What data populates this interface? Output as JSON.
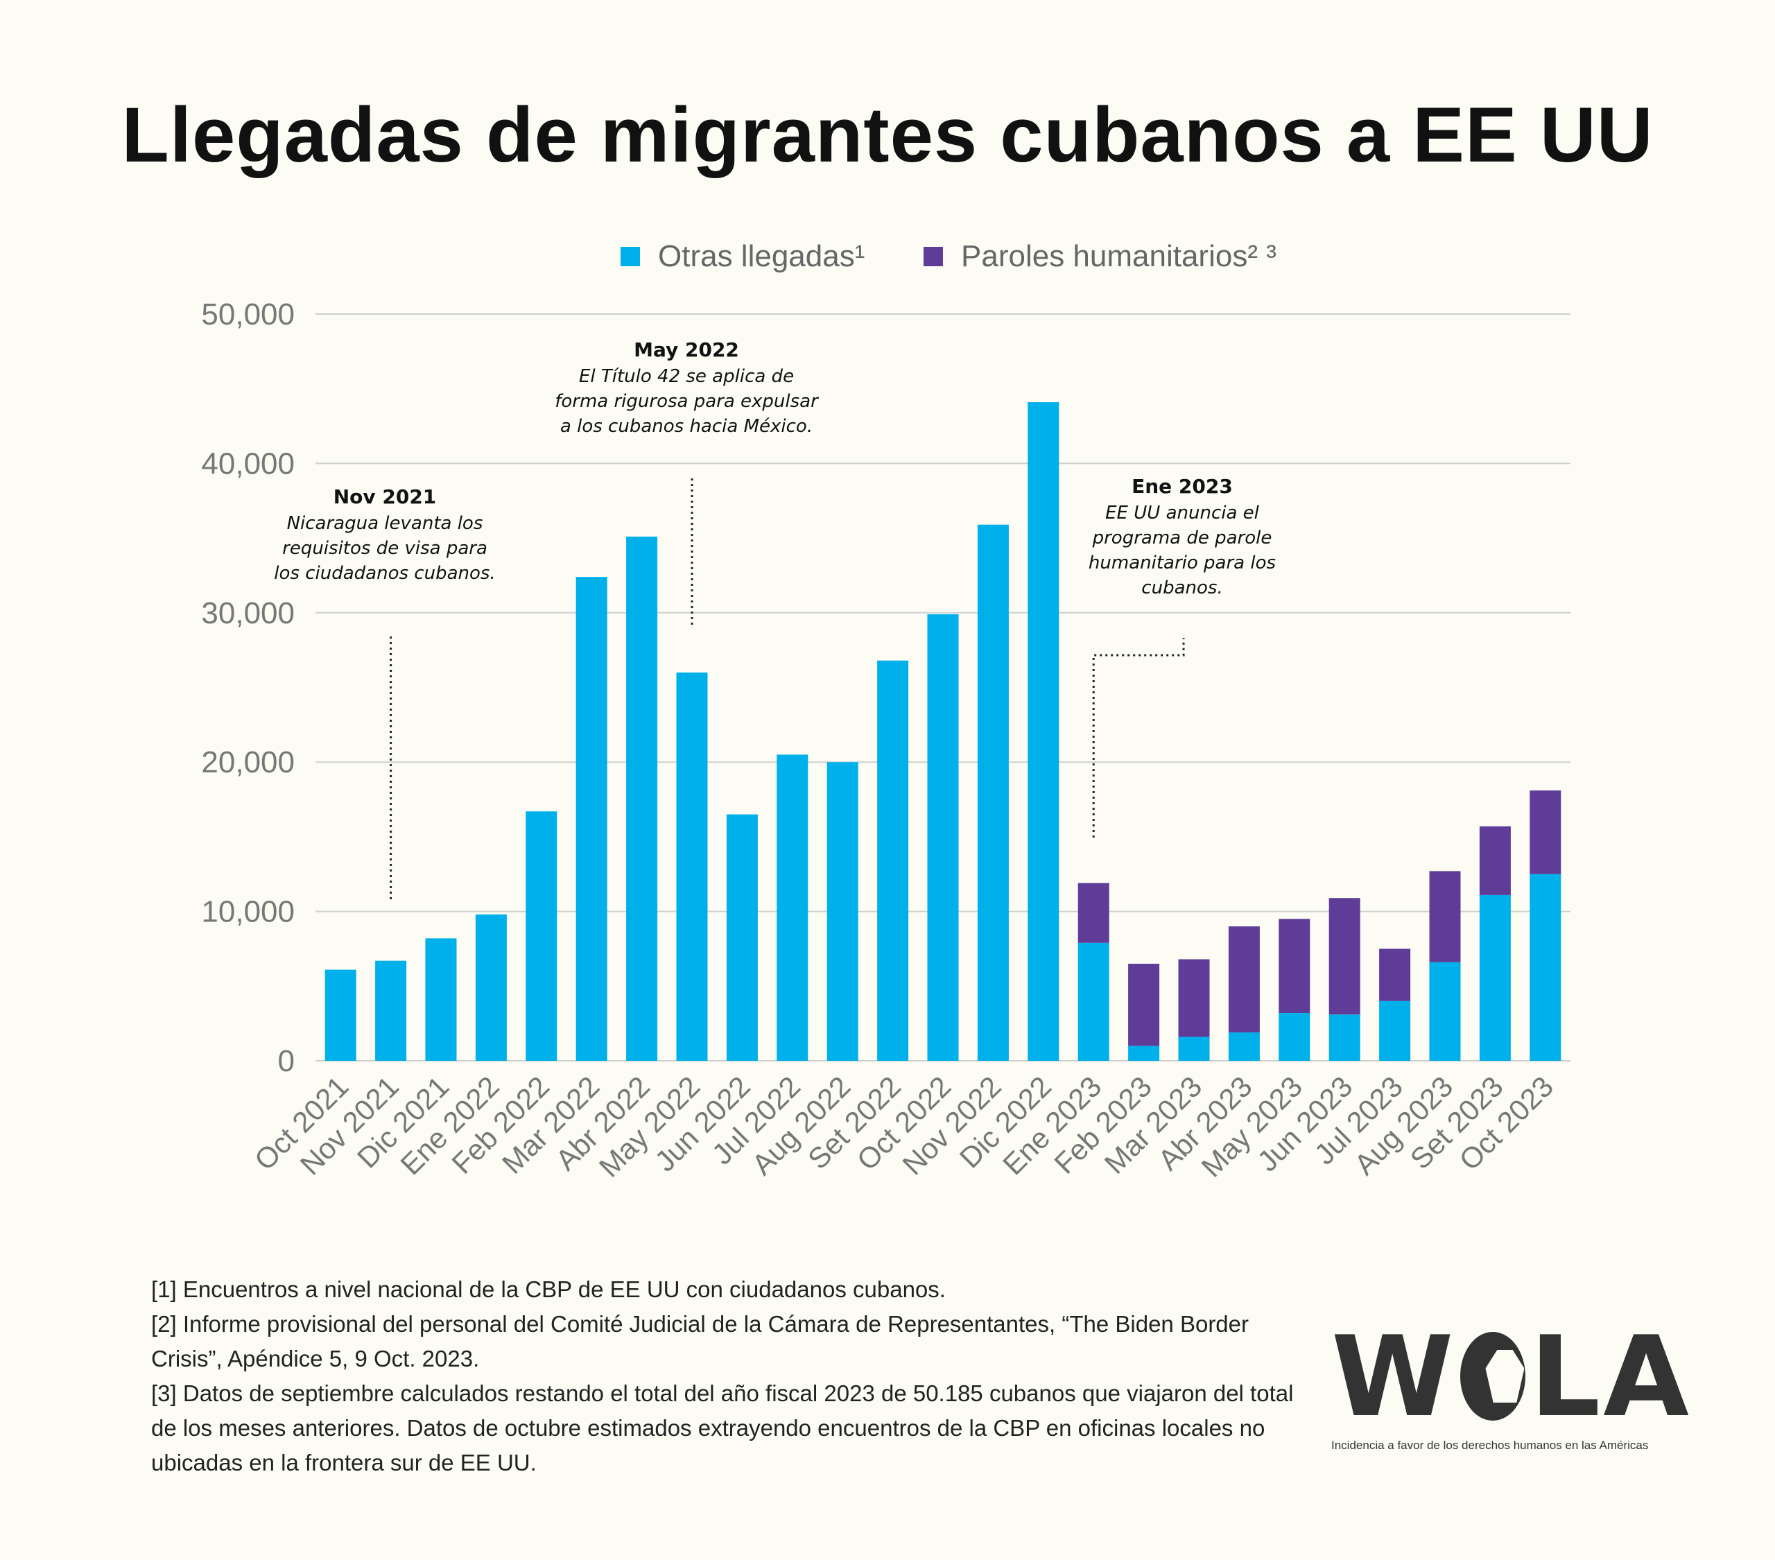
{
  "title": "Llegadas de migrantes cubanos a EE UU",
  "colors": {
    "otras": "#00b0eb",
    "paroles": "#5f3c98",
    "grid": "#cfcfcf",
    "axis_text": "#777777",
    "background": "#fcfcf5"
  },
  "legend": {
    "otras_label": "Otras llegadas¹",
    "paroles_label": "Paroles humanitarios² ³"
  },
  "chart_data": {
    "type": "bar",
    "stacked": true,
    "categories": [
      "Oct 2021",
      "Nov 2021",
      "Dic 2021",
      "Ene 2022",
      "Feb 2022",
      "Mar 2022",
      "Abr 2022",
      "May 2022",
      "Jun 2022",
      "Jul 2022",
      "Aug 2022",
      "Set 2022",
      "Oct 2022",
      "Nov 2022",
      "Dic 2022",
      "Ene 2023",
      "Feb 2023",
      "Mar 2023",
      "Abr 2023",
      "May 2023",
      "Jun 2023",
      "Jul 2023",
      "Aug 2023",
      "Set 2023",
      "Oct 2023"
    ],
    "series": [
      {
        "name": "Otras llegadas¹",
        "values": [
          6100,
          6700,
          8200,
          9800,
          16700,
          32400,
          35100,
          26000,
          16500,
          20500,
          20000,
          26800,
          29900,
          35900,
          44100,
          7900,
          1000,
          1600,
          1900,
          3200,
          3100,
          4000,
          6600,
          11100,
          12500
        ]
      },
      {
        "name": "Paroles humanitarios² ³",
        "values": [
          0,
          0,
          0,
          0,
          0,
          0,
          0,
          0,
          0,
          0,
          0,
          0,
          0,
          0,
          0,
          4000,
          5500,
          5200,
          7100,
          6300,
          7800,
          3500,
          6100,
          4600,
          5600
        ]
      }
    ],
    "ylim": [
      0,
      50000
    ],
    "yticks": [
      0,
      10000,
      20000,
      30000,
      40000,
      50000
    ],
    "ytick_labels": [
      "0",
      "10,000",
      "20,000",
      "30,000",
      "40,000",
      "50,000"
    ],
    "grid": true,
    "legend_position": "top"
  },
  "annotations": [
    {
      "category": "Nov 2021",
      "title": "Nov 2021",
      "text": "Nicaragua levanta los\nrequisitos de visa para\nlos ciudadanos cubanos."
    },
    {
      "category": "May 2022",
      "title": "May 2022",
      "text": "El Título 42 se aplica de\nforma rigurosa para expulsar\na los cubanos hacia México."
    },
    {
      "category": "Ene 2023",
      "title": "Ene 2023",
      "text": "EE UU anuncia el\nprograma de parole\nhumanitario para los\ncubanos."
    }
  ],
  "footnotes": [
    "[1] Encuentros a nivel nacional de la CBP de EE UU con ciudadanos cubanos.",
    "[2] Informe provisional del personal del Comité Judicial de la Cámara de Representantes, “The Biden Border Crisis”, Apéndice 5, 9 Oct. 2023.",
    "[3] Datos de septiembre calculados restando el total del año fiscal 2023 de 50.185 cubanos que viajaron del total de los meses anteriores. Datos de octubre estimados extrayendo encuentros de la CBP en oficinas locales no ubicadas en la frontera sur de EE UU."
  ],
  "logo": {
    "text_w": "W",
    "text_la": "LA",
    "tagline": "Incidencia a favor de los derechos humanos en las Américas"
  }
}
